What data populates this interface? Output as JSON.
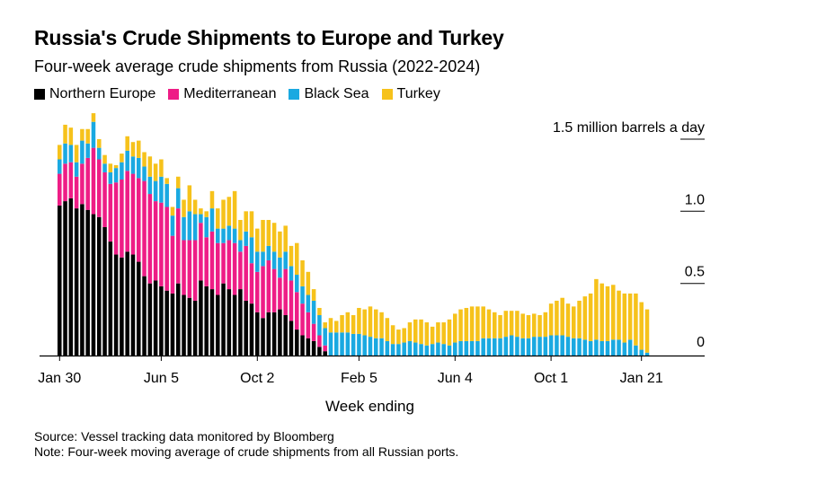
{
  "chart_data": {
    "type": "bar",
    "stacked": true,
    "title": "Russia's Crude Shipments to Europe and Turkey",
    "subtitle": "Four-week average crude shipments from Russia (2022-2024)",
    "xlabel": "Week ending",
    "ylabel": "",
    "y_unit_label": "1.5 million barrels a day",
    "ylim": [
      0,
      1.5
    ],
    "yticks": [
      {
        "value": 0,
        "label": "0"
      },
      {
        "value": 0.5,
        "label": "0.5"
      },
      {
        "value": 1.0,
        "label": "1.0"
      },
      {
        "value": 1.5,
        "label": "1.5 million barrels a day"
      }
    ],
    "xticks": [
      {
        "index": 0,
        "label": "Jan 30"
      },
      {
        "index": 18,
        "label": "Jun 5"
      },
      {
        "index": 35,
        "label": "Oct 2"
      },
      {
        "index": 53,
        "label": "Feb 5"
      },
      {
        "index": 70,
        "label": "Jun 4"
      },
      {
        "index": 87,
        "label": "Oct 1"
      },
      {
        "index": 103,
        "label": "Jan 21"
      }
    ],
    "legend_position": "top-left",
    "colors": {
      "Northern Europe": "#000000",
      "Mediterranean": "#ee1d86",
      "Black Sea": "#1aa9e1",
      "Turkey": "#f6c21b"
    },
    "series": [
      {
        "name": "Northern Europe",
        "values": [
          1.04,
          1.07,
          1.09,
          1.02,
          1.05,
          1.01,
          0.98,
          0.96,
          0.89,
          0.79,
          0.7,
          0.68,
          0.72,
          0.7,
          0.65,
          0.55,
          0.5,
          0.52,
          0.48,
          0.45,
          0.43,
          0.5,
          0.42,
          0.4,
          0.38,
          0.52,
          0.48,
          0.46,
          0.42,
          0.5,
          0.46,
          0.42,
          0.46,
          0.38,
          0.36,
          0.3,
          0.26,
          0.3,
          0.3,
          0.32,
          0.28,
          0.24,
          0.18,
          0.14,
          0.12,
          0.1,
          0.06,
          0.03,
          0,
          0,
          0,
          0,
          0,
          0,
          0,
          0,
          0,
          0,
          0,
          0,
          0,
          0,
          0,
          0,
          0,
          0,
          0,
          0,
          0,
          0,
          0,
          0,
          0,
          0,
          0,
          0,
          0,
          0,
          0,
          0,
          0,
          0,
          0,
          0,
          0,
          0,
          0,
          0,
          0,
          0,
          0,
          0,
          0,
          0,
          0,
          0,
          0,
          0,
          0,
          0,
          0,
          0,
          0,
          0,
          0
        ]
      },
      {
        "name": "Mediterranean",
        "values": [
          0.22,
          0.26,
          0.25,
          0.22,
          0.28,
          0.36,
          0.46,
          0.4,
          0.38,
          0.4,
          0.5,
          0.54,
          0.56,
          0.56,
          0.58,
          0.66,
          0.62,
          0.55,
          0.58,
          0.58,
          0.4,
          0.52,
          0.38,
          0.4,
          0.42,
          0.4,
          0.34,
          0.4,
          0.36,
          0.28,
          0.34,
          0.36,
          0.26,
          0.38,
          0.28,
          0.28,
          0.36,
          0.36,
          0.3,
          0.22,
          0.32,
          0.28,
          0.26,
          0.22,
          0.18,
          0.12,
          0.08,
          0.04,
          0,
          0,
          0,
          0,
          0,
          0,
          0,
          0,
          0,
          0,
          0,
          0,
          0,
          0,
          0,
          0,
          0,
          0,
          0,
          0,
          0,
          0,
          0,
          0,
          0,
          0,
          0,
          0,
          0,
          0,
          0,
          0,
          0,
          0,
          0,
          0,
          0,
          0,
          0,
          0,
          0,
          0,
          0,
          0,
          0,
          0,
          0,
          0,
          0,
          0,
          0,
          0,
          0,
          0,
          0,
          0,
          0
        ]
      },
      {
        "name": "Black Sea",
        "values": [
          0.1,
          0.14,
          0.12,
          0.1,
          0.16,
          0.1,
          0.18,
          0.08,
          0.06,
          0.08,
          0.1,
          0.12,
          0.14,
          0.12,
          0.14,
          0.1,
          0.12,
          0.14,
          0.18,
          0.16,
          0.14,
          0.14,
          0.16,
          0.2,
          0.18,
          0.06,
          0.14,
          0.16,
          0.1,
          0.1,
          0.1,
          0.1,
          0.08,
          0.1,
          0.18,
          0.14,
          0.1,
          0.1,
          0.12,
          0.14,
          0.12,
          0.1,
          0.12,
          0.12,
          0.12,
          0.16,
          0.14,
          0.12,
          0.16,
          0.16,
          0.16,
          0.16,
          0.15,
          0.15,
          0.14,
          0.13,
          0.12,
          0.12,
          0.1,
          0.08,
          0.08,
          0.09,
          0.1,
          0.09,
          0.08,
          0.07,
          0.08,
          0.09,
          0.08,
          0.07,
          0.09,
          0.1,
          0.1,
          0.1,
          0.1,
          0.12,
          0.12,
          0.12,
          0.12,
          0.13,
          0.14,
          0.13,
          0.12,
          0.12,
          0.13,
          0.13,
          0.13,
          0.14,
          0.14,
          0.14,
          0.13,
          0.12,
          0.12,
          0.11,
          0.1,
          0.11,
          0.1,
          0.1,
          0.11,
          0.11,
          0.09,
          0.11,
          0.07,
          0.04,
          0.02
        ]
      },
      {
        "name": "Turkey",
        "values": [
          0.1,
          0.13,
          0.12,
          0.12,
          0.08,
          0.1,
          0.06,
          0.06,
          0.06,
          0.06,
          0.02,
          0.06,
          0.1,
          0.1,
          0.12,
          0.1,
          0.14,
          0.12,
          0.12,
          0.04,
          0.06,
          0.08,
          0.12,
          0.18,
          0.1,
          0.04,
          0.04,
          0.12,
          0.14,
          0.2,
          0.2,
          0.26,
          0.14,
          0.14,
          0.18,
          0.16,
          0.22,
          0.18,
          0.2,
          0.18,
          0.18,
          0.14,
          0.22,
          0.18,
          0.16,
          0.08,
          0.05,
          0.04,
          0.1,
          0.08,
          0.12,
          0.14,
          0.13,
          0.18,
          0.18,
          0.21,
          0.2,
          0.18,
          0.16,
          0.13,
          0.1,
          0.1,
          0.13,
          0.16,
          0.17,
          0.16,
          0.12,
          0.14,
          0.15,
          0.18,
          0.2,
          0.22,
          0.23,
          0.24,
          0.24,
          0.22,
          0.2,
          0.18,
          0.16,
          0.18,
          0.17,
          0.18,
          0.17,
          0.16,
          0.16,
          0.15,
          0.17,
          0.22,
          0.24,
          0.26,
          0.23,
          0.22,
          0.26,
          0.3,
          0.33,
          0.42,
          0.4,
          0.38,
          0.38,
          0.34,
          0.34,
          0.32,
          0.36,
          0.33,
          0.3
        ]
      }
    ]
  },
  "footer": {
    "source": "Source: Vessel tracking data monitored by Bloomberg",
    "note": "Note: Four-week moving average of crude shipments from all Russian ports."
  }
}
